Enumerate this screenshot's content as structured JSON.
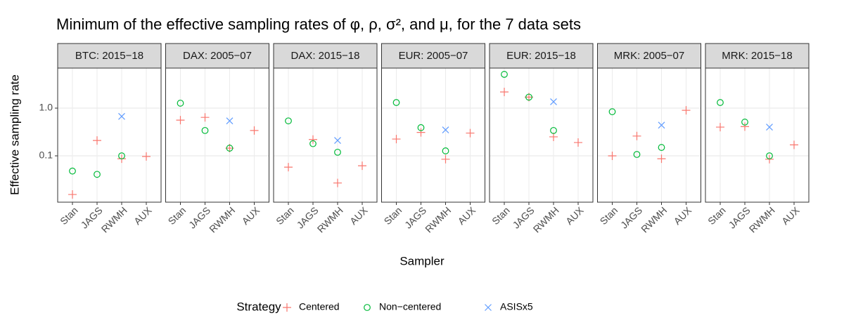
{
  "chart_data": {
    "type": "scatter",
    "title": "Minimum of the effective sampling rates of φ, ρ, σ², and μ, for the 7 data sets",
    "x_label": "Sampler",
    "y_label": "Effective sampling rate",
    "categories": [
      "Stan",
      "JAGS",
      "RWMH",
      "AUX"
    ],
    "ylim": [
      0.0107,
      6.9
    ],
    "yticks": [
      0.1,
      {
        "value": 1,
        "label": "1.0"
      }
    ],
    "log_y": true,
    "grid": true,
    "legend": {
      "title": "Strategy",
      "position": "bottom"
    },
    "series": [
      {
        "name": "Centered",
        "color": "#F8766D",
        "shape": "plus"
      },
      {
        "name": "Non−centered",
        "color": "#00BA38",
        "shape": "circle"
      },
      {
        "name": "ASISx5",
        "color": "#619CFF",
        "shape": "cross"
      }
    ],
    "facets": [
      {
        "title": "BTC: 2015−18",
        "series": [
          {
            "values": [
              0.0155,
              0.21,
              0.087,
              0.097
            ]
          },
          {
            "values": [
              0.048,
              0.041,
              0.1,
              null
            ]
          },
          {
            "values": [
              null,
              null,
              0.67,
              null
            ]
          }
        ]
      },
      {
        "title": "DAX: 2005−07",
        "series": [
          {
            "values": [
              0.56,
              0.64,
              0.145,
              0.34
            ]
          },
          {
            "values": [
              1.27,
              0.34,
              0.145,
              null
            ]
          },
          {
            "values": [
              null,
              null,
              0.54,
              null
            ]
          }
        ]
      },
      {
        "title": "DAX: 2015−18",
        "series": [
          {
            "values": [
              0.058,
              0.22,
              0.027,
              0.062
            ]
          },
          {
            "values": [
              0.54,
              0.18,
              0.119,
              null
            ]
          },
          {
            "values": [
              null,
              null,
              0.21,
              null
            ]
          }
        ]
      },
      {
        "title": "EUR: 2005−07",
        "series": [
          {
            "values": [
              0.225,
              0.31,
              0.085,
              0.3
            ]
          },
          {
            "values": [
              1.31,
              0.39,
              0.127,
              null
            ]
          },
          {
            "values": [
              null,
              null,
              0.35,
              null
            ]
          }
        ]
      },
      {
        "title": "EUR: 2015−18",
        "series": [
          {
            "values": [
              2.18,
              1.7,
              0.25,
              0.19
            ]
          },
          {
            "values": [
              5.1,
              1.7,
              0.34,
              null
            ]
          },
          {
            "values": [
              null,
              null,
              1.36,
              null
            ]
          }
        ]
      },
      {
        "title": "MRK: 2005−07",
        "series": [
          {
            "values": [
              0.1,
              0.26,
              0.087,
              0.9
            ]
          },
          {
            "values": [
              0.84,
              0.107,
              0.15,
              null
            ]
          },
          {
            "values": [
              null,
              null,
              0.44,
              null
            ]
          }
        ]
      },
      {
        "title": "MRK: 2015−18",
        "series": [
          {
            "values": [
              0.4,
              0.41,
              0.085,
              0.17
            ]
          },
          {
            "values": [
              1.31,
              0.51,
              0.1,
              null
            ]
          },
          {
            "values": [
              null,
              null,
              0.4,
              null
            ]
          }
        ]
      }
    ]
  }
}
